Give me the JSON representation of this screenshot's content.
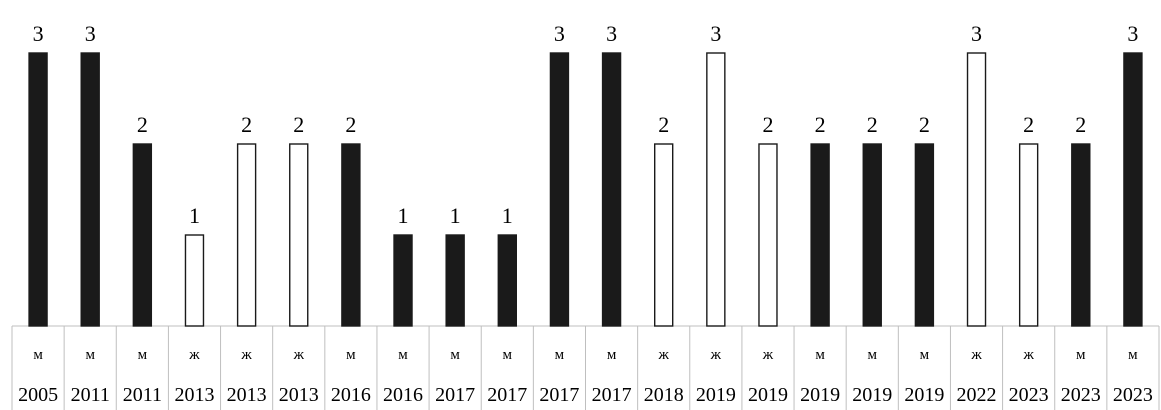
{
  "chart_data": {
    "type": "bar",
    "title": "",
    "xlabel": "",
    "ylabel": "",
    "ylim": [
      0,
      3
    ],
    "grid": false,
    "legend": "none",
    "colors": {
      "filled": "#1a1a1a",
      "outline": "#1a1a1a",
      "hollow_fill": "#ffffff",
      "table_border": "#bfbfbf"
    },
    "items": [
      {
        "sex": "м",
        "year": "2005",
        "value": 3,
        "filled": true
      },
      {
        "sex": "м",
        "year": "2011",
        "value": 3,
        "filled": true
      },
      {
        "sex": "м",
        "year": "2011",
        "value": 2,
        "filled": true
      },
      {
        "sex": "ж",
        "year": "2013",
        "value": 1,
        "filled": false
      },
      {
        "sex": "ж",
        "year": "2013",
        "value": 2,
        "filled": false
      },
      {
        "sex": "ж",
        "year": "2013",
        "value": 2,
        "filled": false
      },
      {
        "sex": "м",
        "year": "2016",
        "value": 2,
        "filled": true
      },
      {
        "sex": "м",
        "year": "2016",
        "value": 1,
        "filled": true
      },
      {
        "sex": "м",
        "year": "2017",
        "value": 1,
        "filled": true
      },
      {
        "sex": "м",
        "year": "2017",
        "value": 1,
        "filled": true
      },
      {
        "sex": "м",
        "year": "2017",
        "value": 3,
        "filled": true
      },
      {
        "sex": "м",
        "year": "2017",
        "value": 3,
        "filled": true
      },
      {
        "sex": "ж",
        "year": "2018",
        "value": 2,
        "filled": false
      },
      {
        "sex": "ж",
        "year": "2019",
        "value": 3,
        "filled": false
      },
      {
        "sex": "ж",
        "year": "2019",
        "value": 2,
        "filled": false
      },
      {
        "sex": "м",
        "year": "2019",
        "value": 2,
        "filled": true
      },
      {
        "sex": "м",
        "year": "2019",
        "value": 2,
        "filled": true
      },
      {
        "sex": "м",
        "year": "2019",
        "value": 2,
        "filled": true
      },
      {
        "sex": "ж",
        "year": "2022",
        "value": 3,
        "filled": false
      },
      {
        "sex": "ж",
        "year": "2023",
        "value": 2,
        "filled": false
      },
      {
        "sex": "м",
        "year": "2023",
        "value": 2,
        "filled": true
      },
      {
        "sex": "м",
        "year": "2023",
        "value": 3,
        "filled": true
      }
    ]
  }
}
